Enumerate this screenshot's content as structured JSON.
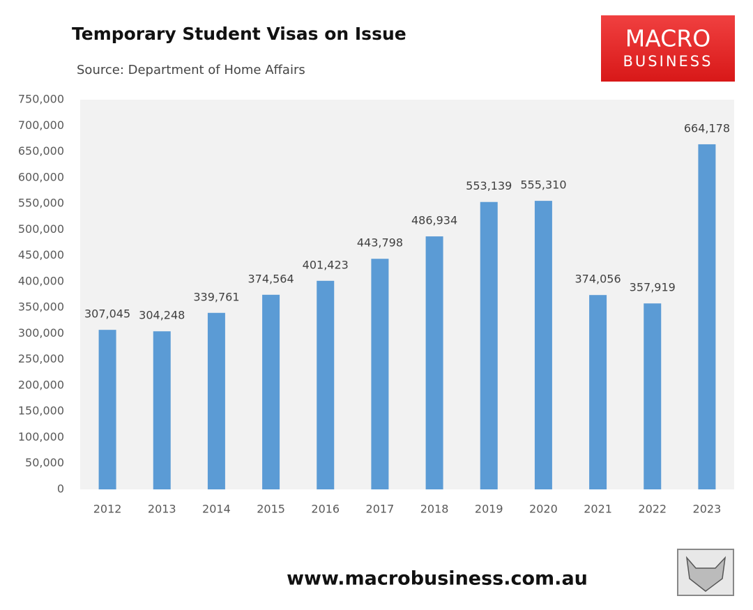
{
  "chart_data": {
    "type": "bar",
    "title": "Temporary Student Visas on Issue",
    "subtitle": "Source: Department of Home Affairs",
    "logo_line1": "MACRO",
    "logo_line2": "BUSINESS",
    "footer": "www.macrobusiness.com.au",
    "categories": [
      "2012",
      "2013",
      "2014",
      "2015",
      "2016",
      "2017",
      "2018",
      "2019",
      "2020",
      "2021",
      "2022",
      "2023"
    ],
    "values": [
      307045,
      304248,
      339761,
      374564,
      401423,
      443798,
      486934,
      553139,
      555310,
      374056,
      357919,
      664178
    ],
    "value_labels": [
      "307,045",
      "304,248",
      "339,761",
      "374,564",
      "401,423",
      "443,798",
      "486,934",
      "553,139",
      "555,310",
      "374,056",
      "357,919",
      "664,178"
    ],
    "color": "#5b9bd5",
    "ylim": [
      0,
      750000
    ],
    "yticks": [
      0,
      {
        "value": 50000,
        "label": "50,000"
      },
      {
        "value": 100000,
        "label": "100,000"
      },
      {
        "value": 150000,
        "label": "150,000"
      },
      {
        "value": 200000,
        "label": "200,000"
      },
      {
        "value": 250000,
        "label": "250,000"
      },
      {
        "value": 300000,
        "label": "300,000"
      },
      {
        "value": 350000,
        "label": "350,000"
      },
      {
        "value": 400000,
        "label": "400,000"
      },
      {
        "value": 450000,
        "label": "450,000"
      },
      {
        "value": 500000,
        "label": "500,000"
      },
      {
        "value": 550000,
        "label": "550,000"
      },
      {
        "value": 600000,
        "label": "600,000"
      },
      {
        "value": 650000,
        "label": "650,000"
      },
      {
        "value": 700000,
        "label": "700,000"
      },
      {
        "value": 750000,
        "label": "750,000"
      }
    ],
    "grid": false
  }
}
